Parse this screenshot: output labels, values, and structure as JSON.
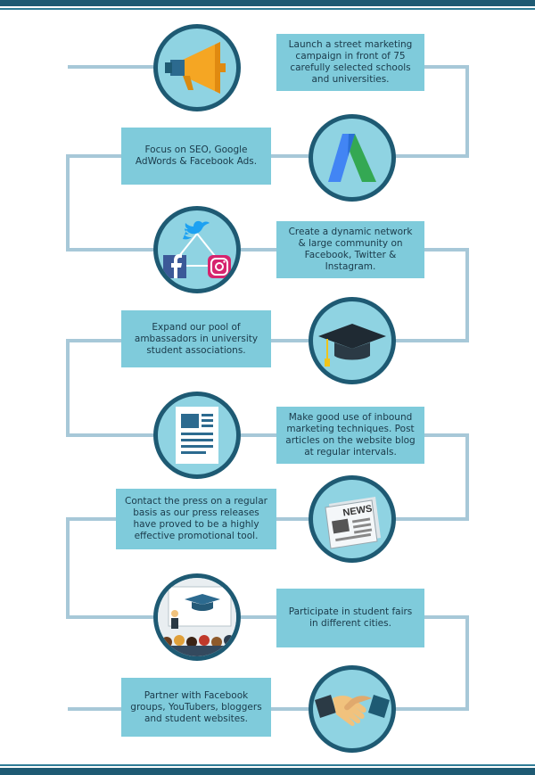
{
  "steps": [
    {
      "text": "Launch a street marketing campaign in front of 75 carefully selected schools and universities.",
      "icon": "megaphone-icon"
    },
    {
      "text": "Focus on SEO, Google AdWords & Facebook Ads.",
      "icon": "google-adwords-icon"
    },
    {
      "text": "Create a dynamic network & large community on Facebook, Twitter & Instagram.",
      "icon": "social-media-icon"
    },
    {
      "text": "Expand our pool of ambassadors in university student associations.",
      "icon": "graduation-cap-icon"
    },
    {
      "text": "Make good use of inbound marketing techniques. Post articles on the website blog at regular intervals.",
      "icon": "blog-article-icon"
    },
    {
      "text": "Contact the press on a regular basis as our press releases have proved to be a highly effective promotional tool.",
      "icon": "newspaper-icon"
    },
    {
      "text": "Participate in student fairs in different cities.",
      "icon": "student-fair-icon"
    },
    {
      "text": "Partner with Facebook groups, YouTubers, bloggers and student websites.",
      "icon": "handshake-icon"
    }
  ],
  "icon_labels": {
    "newspaper_headline": "NEWS"
  },
  "colors": {
    "frame": "#1e5a73",
    "box": "#7fcbdb",
    "circle": "#8fd3e2",
    "connector": "#a7c8d8"
  }
}
